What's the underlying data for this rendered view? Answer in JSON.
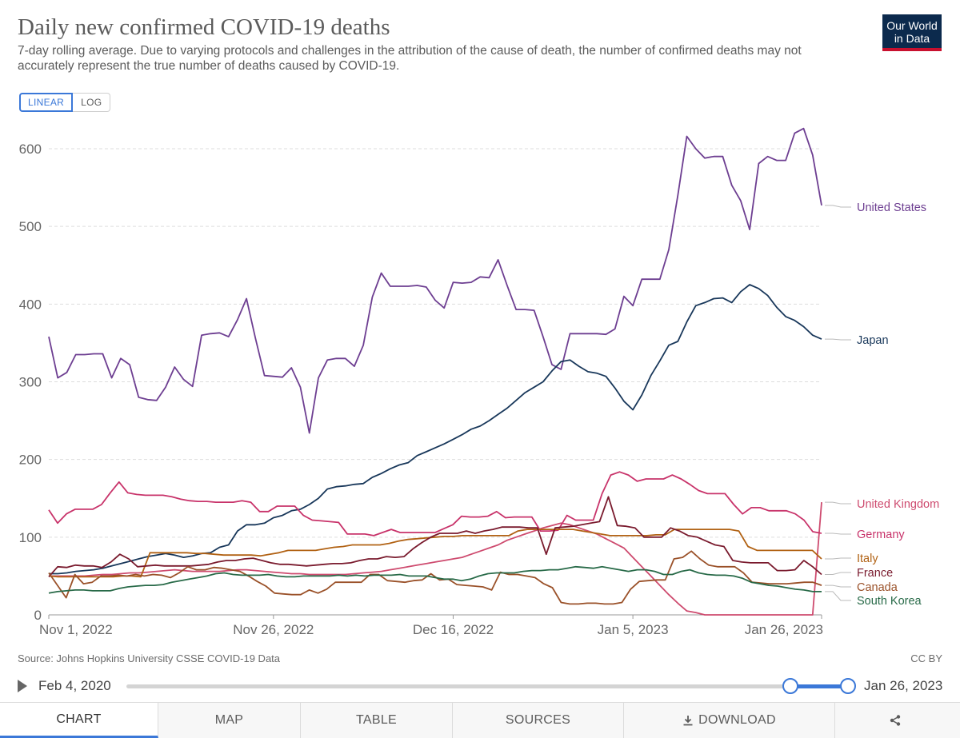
{
  "header": {
    "title": "Daily new confirmed COVID-19 deaths",
    "subtitle": "7-day rolling average. Due to varying protocols and challenges in the attribution of the cause of death, the number of confirmed deaths may not accurately represent the true number of deaths caused by COVID-19.",
    "logo_line1": "Our World",
    "logo_line2": "in Data"
  },
  "scale_toggle": {
    "linear": "LINEAR",
    "log": "LOG",
    "selected": "LINEAR"
  },
  "footer": {
    "source": "Source: Johns Hopkins University CSSE COVID-19 Data",
    "license": "CC BY"
  },
  "timeline": {
    "start_label": "Feb 4, 2020",
    "end_label": "Jan 26, 2023",
    "selected_start": "Jan 4, 2023"
  },
  "tabs": [
    {
      "label": "CHART",
      "icon": ""
    },
    {
      "label": "MAP",
      "icon": ""
    },
    {
      "label": "TABLE",
      "icon": ""
    },
    {
      "label": "SOURCES",
      "icon": ""
    },
    {
      "label": "DOWNLOAD",
      "icon": "download-icon"
    },
    {
      "label": "",
      "icon": "share-icon"
    }
  ],
  "colors": {
    "accent": "#3b78d8",
    "logo_bg": "#0c2a4d",
    "logo_bar": "#c8102e"
  },
  "chart_data": {
    "type": "line",
    "title": "Daily new confirmed COVID-19 deaths",
    "x_start": "2022-11-01",
    "ylim": [
      0,
      630
    ],
    "yticks": [
      0,
      100,
      200,
      300,
      400,
      500,
      600
    ],
    "xtick_labels": [
      {
        "label": "Nov 1, 2022",
        "date": "2022-11-01"
      },
      {
        "label": "Nov 26, 2022",
        "date": "2022-11-26"
      },
      {
        "label": "Dec 16, 2022",
        "date": "2022-12-16"
      },
      {
        "label": "Jan 5, 2023",
        "date": "2023-01-05"
      },
      {
        "label": "Jan 26, 2023",
        "date": "2023-01-26"
      }
    ],
    "grid": true,
    "legend": "right, labels at line ends",
    "series": [
      {
        "name": "United States",
        "color": "#6d3e91",
        "values": [
          358,
          305,
          312,
          335,
          335,
          336,
          336,
          305,
          330,
          322,
          280,
          277,
          276,
          293,
          319,
          303,
          294,
          360,
          362,
          363,
          358,
          380,
          407,
          356,
          308,
          307,
          306,
          318,
          293,
          234,
          305,
          328,
          330,
          330,
          320,
          347,
          409,
          440,
          423,
          423,
          423,
          424,
          422,
          405,
          395,
          428,
          427,
          428,
          435,
          434,
          457,
          424,
          393,
          393,
          392,
          358,
          322,
          316,
          362,
          362,
          362,
          362,
          361,
          368,
          410,
          398,
          432,
          432,
          432,
          470,
          540,
          616,
          600,
          588,
          590,
          590,
          553,
          533,
          496,
          581,
          590,
          585,
          585,
          620,
          626,
          592,
          527
        ]
      },
      {
        "name": "Japan",
        "color": "#18375a",
        "values": [
          53,
          53,
          54,
          56,
          57,
          58,
          60,
          63,
          66,
          69,
          72,
          75,
          77,
          79,
          77,
          74,
          76,
          79,
          80,
          87,
          90,
          108,
          116,
          116,
          118,
          125,
          128,
          134,
          136,
          142,
          150,
          162,
          165,
          166,
          168,
          169,
          177,
          182,
          188,
          193,
          196,
          205,
          210,
          215,
          220,
          226,
          232,
          239,
          243,
          250,
          258,
          266,
          276,
          286,
          293,
          300,
          314,
          326,
          328,
          320,
          313,
          311,
          307,
          292,
          275,
          264,
          283,
          308,
          327,
          347,
          352,
          377,
          398,
          402,
          407,
          408,
          402,
          416,
          425,
          420,
          411,
          396,
          384,
          379,
          371,
          360,
          355
        ]
      },
      {
        "name": "United Kingdom",
        "color": "#ce4b6f",
        "values": [
          50,
          50,
          50,
          50,
          50,
          51,
          52,
          52,
          53,
          54,
          54,
          55,
          56,
          57,
          58,
          57,
          56,
          56,
          56,
          56,
          57,
          58,
          58,
          57,
          56,
          55,
          54,
          53,
          53,
          52,
          52,
          52,
          52,
          52,
          53,
          54,
          55,
          56,
          58,
          60,
          62,
          64,
          66,
          68,
          70,
          72,
          74,
          78,
          82,
          86,
          90,
          96,
          100,
          104,
          108,
          112,
          115,
          118,
          116,
          112,
          108,
          104,
          98,
          92,
          86,
          74,
          62,
          50,
          38,
          26,
          15,
          5,
          3,
          0,
          0,
          0,
          0,
          0,
          0,
          0,
          0,
          0,
          0,
          0,
          0,
          0,
          145
        ]
      },
      {
        "name": "Germany",
        "color": "#c8336a",
        "values": [
          135,
          118,
          130,
          136,
          136,
          136,
          142,
          157,
          171,
          157,
          155,
          154,
          154,
          154,
          152,
          149,
          147,
          146,
          146,
          145,
          145,
          145,
          147,
          145,
          133,
          133,
          140,
          140,
          140,
          128,
          122,
          121,
          120,
          119,
          104,
          104,
          104,
          102,
          106,
          110,
          106,
          106,
          106,
          106,
          106,
          111,
          116,
          127,
          126,
          126,
          127,
          133,
          125,
          126,
          126,
          126,
          108,
          108,
          109,
          128,
          122,
          122,
          122,
          156,
          180,
          184,
          180,
          172,
          175,
          175,
          175,
          180,
          175,
          168,
          160,
          156,
          156,
          156,
          142,
          130,
          138,
          138,
          134,
          134,
          134,
          130,
          122,
          107,
          105
        ]
      },
      {
        "name": "Italy",
        "color": "#b16214",
        "values": [
          50,
          49,
          49,
          49,
          49,
          49,
          49,
          49,
          50,
          50,
          49,
          80,
          80,
          80,
          80,
          80,
          79,
          79,
          78,
          77,
          77,
          77,
          77,
          76,
          78,
          80,
          83,
          83,
          83,
          83,
          85,
          87,
          88,
          90,
          90,
          90,
          90,
          92,
          95,
          97,
          98,
          99,
          100,
          101,
          101,
          102,
          102,
          102,
          102,
          102,
          102,
          108,
          110,
          110,
          110,
          110,
          110,
          110,
          108,
          106,
          104,
          102,
          102,
          102,
          102,
          102,
          103,
          103,
          110,
          110,
          110,
          110,
          110,
          110,
          110,
          108,
          88,
          83,
          83,
          83,
          83,
          83,
          83,
          83,
          72
        ]
      },
      {
        "name": "France",
        "color": "#7a1b2e",
        "values": [
          49,
          62,
          61,
          64,
          63,
          63,
          61,
          68,
          78,
          72,
          62,
          63,
          64,
          63,
          63,
          63,
          63,
          64,
          65,
          68,
          70,
          70,
          72,
          73,
          70,
          67,
          65,
          65,
          64,
          63,
          64,
          65,
          66,
          66,
          67,
          70,
          72,
          72,
          75,
          74,
          75,
          85,
          93,
          100,
          105,
          105,
          105,
          108,
          105,
          108,
          110,
          113,
          113,
          113,
          112,
          112,
          78,
          112,
          113,
          114,
          116,
          118,
          120,
          152,
          115,
          114,
          112,
          100,
          100,
          100,
          112,
          108,
          102,
          100,
          95,
          90,
          88,
          70,
          68,
          67,
          67,
          67,
          57,
          57,
          58,
          70,
          62,
          52
        ]
      },
      {
        "name": "Canada",
        "color": "#9a5129",
        "values": [
          54,
          38,
          22,
          52,
          40,
          42,
          50,
          50,
          51,
          50,
          52,
          50,
          52,
          51,
          48,
          54,
          62,
          58,
          58,
          61,
          60,
          58,
          56,
          50,
          43,
          37,
          28,
          27,
          26,
          26,
          32,
          28,
          33,
          42,
          42,
          42,
          42,
          52,
          52,
          44,
          43,
          42,
          44,
          45,
          53,
          45,
          46,
          39,
          38,
          37,
          36,
          32,
          55,
          52,
          52,
          50,
          48,
          40,
          35,
          16,
          14,
          14,
          15,
          15,
          14,
          14,
          16,
          33,
          43,
          44,
          45,
          45,
          72,
          74,
          82,
          72,
          64,
          62,
          62,
          62,
          54,
          42,
          41,
          40,
          40,
          40,
          41,
          42,
          42,
          38
        ]
      },
      {
        "name": "South Korea",
        "color": "#286a48",
        "values": [
          28,
          30,
          31,
          32,
          32,
          31,
          31,
          31,
          34,
          36,
          37,
          38,
          38,
          39,
          42,
          44,
          46,
          48,
          50,
          53,
          54,
          52,
          51,
          51,
          51,
          52,
          50,
          49,
          49,
          50,
          50,
          50,
          50,
          51,
          50,
          51,
          50,
          51,
          51,
          51,
          52,
          50,
          50,
          50,
          48,
          46,
          46,
          44,
          46,
          50,
          53,
          54,
          54,
          54,
          56,
          57,
          57,
          58,
          58,
          60,
          62,
          61,
          60,
          62,
          60,
          58,
          56,
          58,
          58,
          56,
          52,
          52,
          56,
          58,
          54,
          52,
          51,
          51,
          50,
          47,
          42,
          40,
          38,
          37,
          35,
          33,
          32,
          30,
          30
        ]
      }
    ]
  }
}
